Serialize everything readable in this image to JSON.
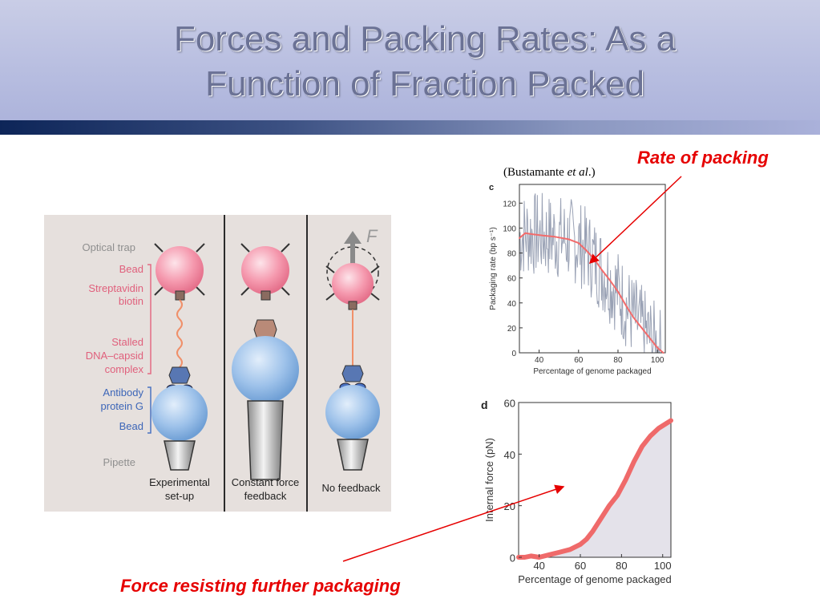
{
  "slide": {
    "title_line1": "Forces and Packing Rates: As a",
    "title_line2": "Function of Fraction Packed",
    "annotation_rate": "Rate of packing",
    "annotation_force": "Force resisting further packaging",
    "citation_author": "(Bustamante ",
    "citation_etal": "et al",
    "citation_end": ".)",
    "colors": {
      "annotation": "#e60000",
      "title": "#6b7295",
      "band_dark": "#0d2558"
    }
  },
  "diagram": {
    "labels": {
      "optical_trap": "Optical trap",
      "bead_top": "Bead",
      "streptavidin": "Streptavidin",
      "biotin": "biotin",
      "stalled": "Stalled",
      "dna_capsid": "DNA–capsid",
      "complex": "complex",
      "antibody": "Antibody",
      "protein_g": "protein G",
      "bead_bottom": "Bead",
      "pipette": "Pipette",
      "force_symbol": "F"
    },
    "captions": {
      "experimental_1": "Experimental",
      "experimental_2": "set-up",
      "constant_1": "Constant force",
      "constant_2": "feedback",
      "no_feedback": "No feedback"
    },
    "icons": [
      "laser-glint-icon",
      "force-arrow-icon"
    ]
  },
  "chart_data": [
    {
      "type": "line",
      "panel_label": "c",
      "xlabel": "Percentage of genome packaged",
      "ylabel": "Packaging rate (bp s⁻¹)",
      "xlim": [
        30,
        104
      ],
      "ylim": [
        0,
        135
      ],
      "xticks": [
        40,
        60,
        80,
        100
      ],
      "yticks": [
        0,
        20,
        40,
        60,
        80,
        100,
        120
      ],
      "grid": false,
      "series": [
        {
          "name": "",
          "color": "#f26b6b",
          "x": [
            30,
            33,
            37,
            42,
            48,
            55,
            60,
            64,
            68,
            72,
            76,
            80,
            84,
            88,
            92,
            96,
            100,
            103
          ],
          "y": [
            92,
            96,
            95,
            94,
            93,
            91,
            88,
            82,
            75,
            66,
            58,
            49,
            38,
            28,
            20,
            12,
            4,
            0
          ]
        }
      ],
      "noise_band": {
        "color": "#9aa2b5",
        "description_visible": false
      }
    },
    {
      "type": "area",
      "panel_label": "d",
      "xlabel": "Percentage of genome packaged",
      "ylabel": "Internal force (pN)",
      "xlim": [
        30,
        104
      ],
      "ylim": [
        0,
        60
      ],
      "xticks": [
        40,
        60,
        80,
        100
      ],
      "yticks": [
        0,
        20,
        40,
        60
      ],
      "grid": false,
      "series": [
        {
          "name": "",
          "color": "#ef6a6a",
          "x": [
            30,
            33,
            36,
            40,
            45,
            50,
            55,
            60,
            63,
            66,
            70,
            74,
            78,
            82,
            86,
            90,
            94,
            98,
            102,
            104
          ],
          "y": [
            0,
            0,
            0.5,
            0,
            1,
            2,
            3,
            5,
            7,
            10,
            15,
            20,
            24,
            30,
            37,
            43,
            47,
            50,
            52,
            53
          ]
        }
      ]
    }
  ]
}
